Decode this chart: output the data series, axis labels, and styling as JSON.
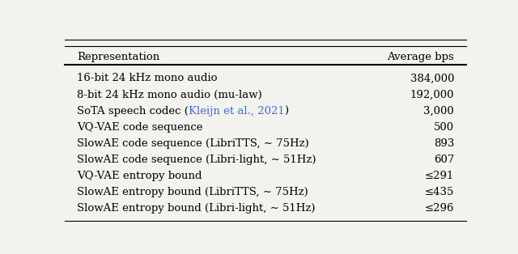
{
  "col_headers": [
    "Representation",
    "Average bps"
  ],
  "rows": [
    {
      "representation_parts": [
        {
          "text": "16-bit 24 kHz mono audio",
          "color": "black"
        }
      ],
      "bps": "384,000"
    },
    {
      "representation_parts": [
        {
          "text": "8-bit 24 kHz mono audio (mu-law)",
          "color": "black"
        }
      ],
      "bps": "192,000"
    },
    {
      "representation_parts": [
        {
          "text": "SoTA speech codec (",
          "color": "black"
        },
        {
          "text": "Kleijn et al., 2021",
          "color": "#4169E1"
        },
        {
          "text": ")",
          "color": "black"
        }
      ],
      "bps": "3,000"
    },
    {
      "representation_parts": [
        {
          "text": "VQ-VAE code sequence",
          "color": "black"
        }
      ],
      "bps": "500"
    },
    {
      "representation_parts": [
        {
          "text": "SlowAE code sequence (LibriTTS, ∼ 75Hz)",
          "color": "black"
        }
      ],
      "bps": "893"
    },
    {
      "representation_parts": [
        {
          "text": "SlowAE code sequence (Libri-light, ∼ 51Hz)",
          "color": "black"
        }
      ],
      "bps": "607"
    },
    {
      "representation_parts": [
        {
          "text": "VQ-VAE entropy bound",
          "color": "black"
        }
      ],
      "bps": "≤291"
    },
    {
      "representation_parts": [
        {
          "text": "SlowAE entropy bound (LibriTTS, ∼ 75Hz)",
          "color": "black"
        }
      ],
      "bps": "≤435"
    },
    {
      "representation_parts": [
        {
          "text": "SlowAE entropy bound (Libri-light, ∼ 51Hz)",
          "color": "black"
        }
      ],
      "bps": "≤296"
    }
  ],
  "background_color": "#f2f2ee",
  "font_size": 9.5,
  "header_font_size": 9.5
}
